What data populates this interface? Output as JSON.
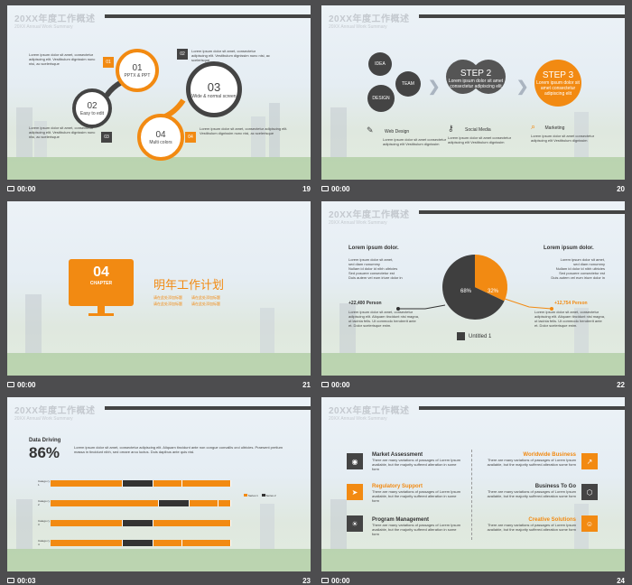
{
  "header": {
    "title": "20XX年度工作概述",
    "subtitle": "20XX Annual Work Summary"
  },
  "lorem_long": "Lorem ipsum dolor sit amet, consectetur adipiscing elit. Vestibulum dignissim nunc nisi, ac scelerisque",
  "slides": [
    {
      "page": "19",
      "time": "00:00",
      "steps": [
        {
          "num": "01",
          "label": "PPTX & PPT"
        },
        {
          "num": "02",
          "label": "Easy to edit"
        },
        {
          "num": "03",
          "label": "Wide & normal screen"
        },
        {
          "num": "04",
          "label": "Multi colors"
        }
      ],
      "tags": [
        "01",
        "02",
        "03",
        "04"
      ]
    },
    {
      "page": "20",
      "time": "00:00",
      "bubbles": [
        "IDEA",
        "TEAM",
        "DESIGN"
      ],
      "step2": "STEP 2",
      "step3": "STEP 3",
      "step_text": "Lorem ipsum dolor sit amet consectetur adipiscing elit",
      "captions": [
        {
          "title": "Web Design",
          "text": "Lorem ipsum dolor sit amet consectetur adipiscing elit Vestibulum dignissim"
        },
        {
          "title": "Social Media",
          "text": "Lorem ipsum dolor sit amet consectetur adipiscing elit Vestibulum dignissim"
        },
        {
          "title": "Marketing",
          "text": "Lorem ipsum dolor sit amet consectetur adipiscing elit Vestibulum dignissim"
        }
      ]
    },
    {
      "page": "21",
      "time": "00:00",
      "chapter_num": "04",
      "chapter_label": "CHAPTER",
      "chapter_title": "明年工作计划",
      "sub_items": [
        "请在此处添加标题",
        "请在此处添加标题",
        "请在此处添加标题",
        "请在此处添加标题"
      ]
    },
    {
      "page": "22",
      "time": "00:00",
      "left_title": "Lorem ipsum dolor.",
      "right_title": "Lorem ipsum dolor.",
      "bullets": [
        "Lorem ipsum dolor sit amet,",
        "sed diam nonummy",
        "Nullam id dolor id nibh ultricies",
        "Sed posuere consectetur est",
        "Duis autem vel eum iriure dolor in"
      ],
      "left_stat": "+22,400",
      "left_stat_label": "Person",
      "right_stat": "+12,754",
      "right_stat_label": "Person",
      "para": "Lorem ipsum dolor sit amet, consectetur adipiscing elit. Aliquam tincidunt nisi magna, ut lacinia felis. Ut commodo hendrerit ante et. Dolor scelerisque enim.",
      "legend": "Untitled 1"
    },
    {
      "page": "23",
      "time": "00:03",
      "title": "Data Driving",
      "percent": "86%",
      "intro": "Lorem ipsum dolor sit amet, consectetur adipiscing elit. Aliquam tincidunt ante non congue convallis orci ultricies. Praesent pretium massa in tincidunt nibh, sed ornare arcu luctus. Duis dapibus ante quis nisl.",
      "rows": [
        "Catego ry 1",
        "Catego ry 2",
        "Catego ry 3",
        "Catego ry 4"
      ],
      "legend": [
        "Series 1",
        "Series 2",
        "Series 3"
      ]
    },
    {
      "page": "24",
      "time": "00:00",
      "left": [
        {
          "title": "Market Assessment",
          "text": "There are many variations of passages of Lorem Ipsum available, but the majority suffered alteration in some form"
        },
        {
          "title": "Regulatory Support",
          "text": "There are many variations of passages of Lorem Ipsum available, but the majority suffered alteration in some form"
        },
        {
          "title": "Program Management",
          "text": "There are many variations of passages of Lorem Ipsum available, but the majority suffered alteration in some form"
        }
      ],
      "right": [
        {
          "title": "Worldwide Business",
          "text": "There are many variations of passages of Lorem Ipsum available, but the majority suffered alteration some form"
        },
        {
          "title": "Business To Go",
          "text": "There are many variations of passages of Lorem Ipsum available, but the majority suffered alteration some form"
        },
        {
          "title": "Creative Solutions",
          "text": "There are many variations of passages of Lorem Ipsum available, but the majority suffered alteration some form"
        }
      ]
    }
  ],
  "pie": {
    "type": "pie",
    "values": [
      68,
      32
    ],
    "labels": [
      "68%",
      "32%"
    ],
    "colors": [
      "#3f3f3f",
      "#f28a12"
    ]
  },
  "colors": {
    "accent": "#f28a12",
    "dark": "#444444"
  }
}
